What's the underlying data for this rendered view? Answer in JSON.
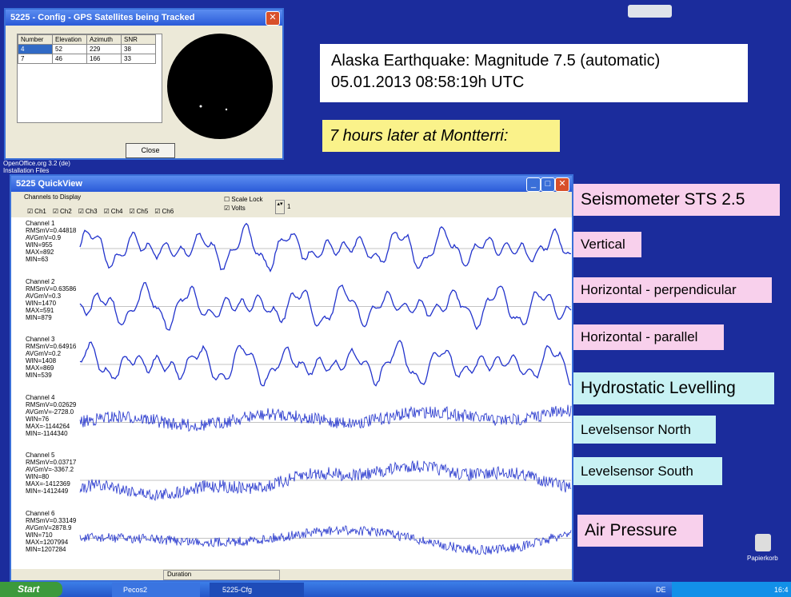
{
  "gps_window": {
    "title": "5225 - Config - GPS Satellites being Tracked",
    "table": {
      "header": [
        "Number",
        "Elevation",
        "Azimuth",
        "SNR"
      ],
      "rows": [
        [
          4,
          52,
          229,
          38
        ],
        [
          7,
          46,
          166,
          33
        ]
      ]
    },
    "button": "Close"
  },
  "desktop": {
    "icon_label": "OpenOffice.org 3.2 (de) Installation Files",
    "recycle_bin": "Papierkorb"
  },
  "slide": {
    "headline": "Alaska Earthquake: Magnitude 7.5 (automatic)",
    "timestamp": "05.01.2013 08:58:19h UTC",
    "subtitle": "7 hours later at Montterri:",
    "labels": [
      "Seismometer STS 2.5",
      "Vertical",
      "Horizontal - perpendicular",
      "Horizontal - parallel",
      "Hydrostatic Levelling",
      "Levelsensor North",
      "Levelsensor South",
      "Air Pressure"
    ]
  },
  "quickview": {
    "title": "5225 QuickView",
    "channels_to_display": "Channels to Display",
    "checkboxes": [
      "Ch1",
      "Ch2",
      "Ch3",
      "Ch4",
      "Ch5",
      "Ch6"
    ],
    "scale_lock": "Scale Lock",
    "volts": "Volts",
    "scale_value": "1",
    "channels": [
      {
        "name": "Channel 1",
        "stats": [
          "RMSmV=0.44818",
          "AVGmV=0.9",
          "WIN=955",
          "MAX=892",
          "MIN=63"
        ]
      },
      {
        "name": "Channel 2",
        "stats": [
          "RMSmV=0.63586",
          "AVGmV=0.3",
          "WIN=1470",
          "MAX=591",
          "MIN=879"
        ]
      },
      {
        "name": "Channel 3",
        "stats": [
          "RMSmV=0.64916",
          "AVGmV=0.2",
          "WIN=1408",
          "MAX=869",
          "MIN=539"
        ]
      },
      {
        "name": "Channel 4",
        "stats": [
          "RMSmV=0.02629",
          "AVGmV=-2728.0",
          "WIN=76",
          "MAX=-1144264",
          "MIN=-1144340"
        ]
      },
      {
        "name": "Channel 5",
        "stats": [
          "RMSmV=0.03717",
          "AVGmV=-3367.2",
          "WIN=80",
          "MAX=-1412369",
          "MIN=-1412449"
        ]
      },
      {
        "name": "Channel 6",
        "stats": [
          "RMSmV=0.33149",
          "AVGmV=2878.9",
          "WIN=710",
          "MAX=1207994",
          "MIN=1207284"
        ]
      }
    ],
    "duration": "Duration"
  },
  "taskbar": {
    "start": "Start",
    "items": [
      "Pecos2",
      "5225-Cfg"
    ],
    "language": "DE",
    "clock": "16:4"
  }
}
